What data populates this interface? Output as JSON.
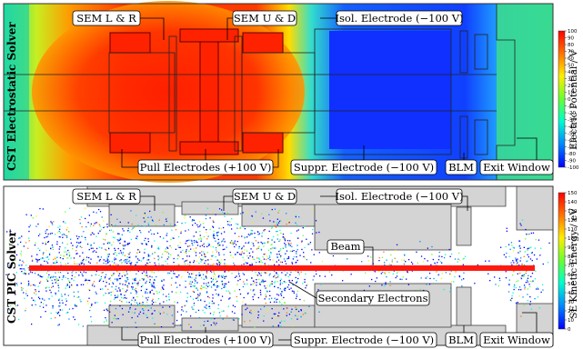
{
  "panels": [
    {
      "side_title": "CST Electrostatic Solver",
      "labels": {
        "sem_lr": "SEM L & R",
        "sem_ud": "SEM U & D",
        "isol": "Isol. Electrode (−100 V)",
        "pull": "Pull Electrodes (+100 V)",
        "suppr": "Suppr. Electrode (−100 V)",
        "blm": "BLM",
        "exit": "Exit Window"
      },
      "colorbar": {
        "title": "Electric Potential / V",
        "ticks": [
          "100",
          "90",
          "80",
          "70",
          "60",
          "50",
          "40",
          "30",
          "20",
          "10",
          "0",
          "-10",
          "-20",
          "-30",
          "-40",
          "-50",
          "-60",
          "-70",
          "-80",
          "-90",
          "-100"
        ],
        "colors": [
          "#ff0000",
          "#ff7700",
          "#ffee00",
          "#66ff33",
          "#00ffcc",
          "#0088ff",
          "#0000ff"
        ]
      }
    },
    {
      "side_title": "CST PIC Solver",
      "labels": {
        "sem_lr": "SEM L & R",
        "sem_ud": "SEM U & D",
        "isol": "Isol. Electrode (−100 V)",
        "beam": "Beam",
        "secondary": "Secondary Electrons",
        "pull": "Pull Electrodes (+100 V)",
        "suppr": "Suppr. Electrode (−100 V)",
        "blm": "BLM",
        "exit": "Exit Window"
      },
      "colorbar": {
        "title": "SE Kinetic Energy / eV",
        "ticks": [
          "150",
          "140",
          "130",
          "120",
          "110",
          "100",
          "90",
          "80",
          "70",
          "60",
          "50",
          "40",
          "30",
          "20",
          "10",
          "0"
        ],
        "colors": [
          "#ff0000",
          "#ff7700",
          "#ffee00",
          "#66ff33",
          "#00ffcc",
          "#0088ff",
          "#0000ff"
        ]
      }
    }
  ]
}
